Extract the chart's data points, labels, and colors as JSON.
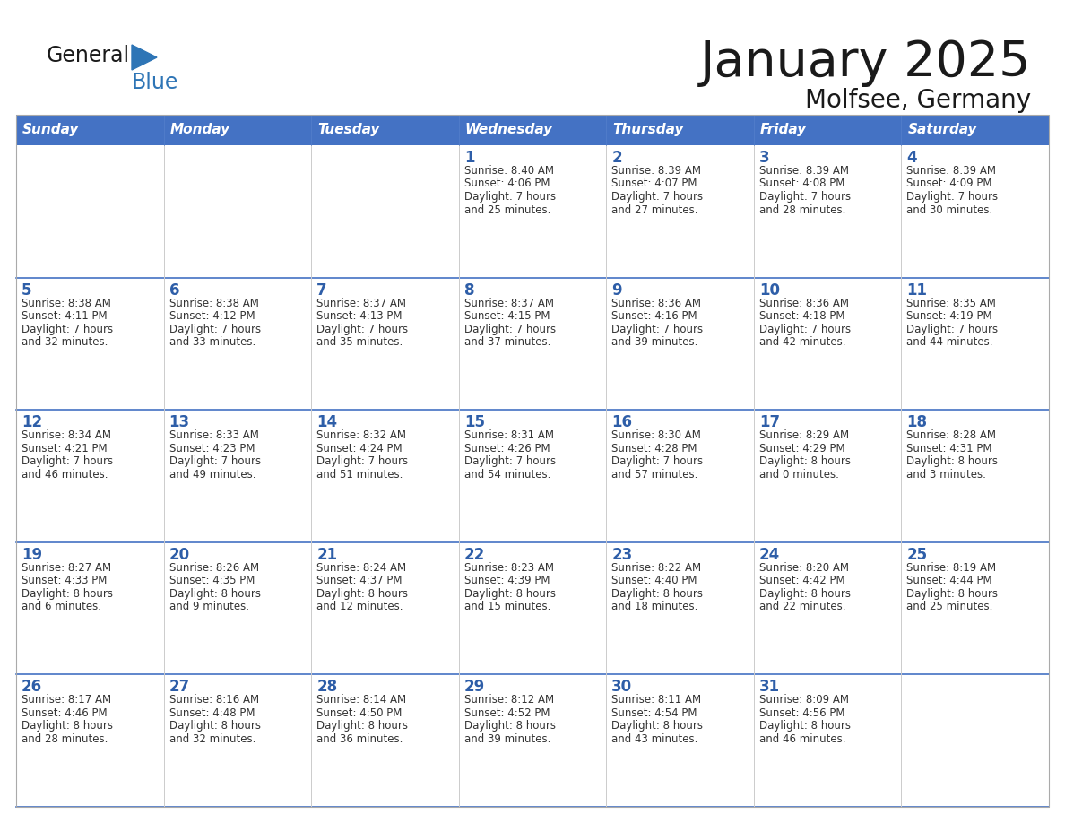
{
  "title": "January 2025",
  "subtitle": "Molfsee, Germany",
  "days_of_week": [
    "Sunday",
    "Monday",
    "Tuesday",
    "Wednesday",
    "Thursday",
    "Friday",
    "Saturday"
  ],
  "header_bg": "#4472C4",
  "header_text": "#FFFFFF",
  "cell_bg_white": "#FFFFFF",
  "cell_bg_gray": "#F0F0F0",
  "day_number_color": "#2E5EA8",
  "cell_text_color": "#333333",
  "border_color": "#4472C4",
  "logo_text_color": "#1a1a1a",
  "logo_blue_color": "#2E75B6",
  "title_color": "#1a1a1a",
  "weeks": [
    [
      {
        "day": null,
        "sunrise": null,
        "sunset": null,
        "daylight": null
      },
      {
        "day": null,
        "sunrise": null,
        "sunset": null,
        "daylight": null
      },
      {
        "day": null,
        "sunrise": null,
        "sunset": null,
        "daylight": null
      },
      {
        "day": 1,
        "sunrise": "8:40 AM",
        "sunset": "4:06 PM",
        "daylight": "7 hours and 25 minutes."
      },
      {
        "day": 2,
        "sunrise": "8:39 AM",
        "sunset": "4:07 PM",
        "daylight": "7 hours and 27 minutes."
      },
      {
        "day": 3,
        "sunrise": "8:39 AM",
        "sunset": "4:08 PM",
        "daylight": "7 hours and 28 minutes."
      },
      {
        "day": 4,
        "sunrise": "8:39 AM",
        "sunset": "4:09 PM",
        "daylight": "7 hours and 30 minutes."
      }
    ],
    [
      {
        "day": 5,
        "sunrise": "8:38 AM",
        "sunset": "4:11 PM",
        "daylight": "7 hours and 32 minutes."
      },
      {
        "day": 6,
        "sunrise": "8:38 AM",
        "sunset": "4:12 PM",
        "daylight": "7 hours and 33 minutes."
      },
      {
        "day": 7,
        "sunrise": "8:37 AM",
        "sunset": "4:13 PM",
        "daylight": "7 hours and 35 minutes."
      },
      {
        "day": 8,
        "sunrise": "8:37 AM",
        "sunset": "4:15 PM",
        "daylight": "7 hours and 37 minutes."
      },
      {
        "day": 9,
        "sunrise": "8:36 AM",
        "sunset": "4:16 PM",
        "daylight": "7 hours and 39 minutes."
      },
      {
        "day": 10,
        "sunrise": "8:36 AM",
        "sunset": "4:18 PM",
        "daylight": "7 hours and 42 minutes."
      },
      {
        "day": 11,
        "sunrise": "8:35 AM",
        "sunset": "4:19 PM",
        "daylight": "7 hours and 44 minutes."
      }
    ],
    [
      {
        "day": 12,
        "sunrise": "8:34 AM",
        "sunset": "4:21 PM",
        "daylight": "7 hours and 46 minutes."
      },
      {
        "day": 13,
        "sunrise": "8:33 AM",
        "sunset": "4:23 PM",
        "daylight": "7 hours and 49 minutes."
      },
      {
        "day": 14,
        "sunrise": "8:32 AM",
        "sunset": "4:24 PM",
        "daylight": "7 hours and 51 minutes."
      },
      {
        "day": 15,
        "sunrise": "8:31 AM",
        "sunset": "4:26 PM",
        "daylight": "7 hours and 54 minutes."
      },
      {
        "day": 16,
        "sunrise": "8:30 AM",
        "sunset": "4:28 PM",
        "daylight": "7 hours and 57 minutes."
      },
      {
        "day": 17,
        "sunrise": "8:29 AM",
        "sunset": "4:29 PM",
        "daylight": "8 hours and 0 minutes."
      },
      {
        "day": 18,
        "sunrise": "8:28 AM",
        "sunset": "4:31 PM",
        "daylight": "8 hours and 3 minutes."
      }
    ],
    [
      {
        "day": 19,
        "sunrise": "8:27 AM",
        "sunset": "4:33 PM",
        "daylight": "8 hours and 6 minutes."
      },
      {
        "day": 20,
        "sunrise": "8:26 AM",
        "sunset": "4:35 PM",
        "daylight": "8 hours and 9 minutes."
      },
      {
        "day": 21,
        "sunrise": "8:24 AM",
        "sunset": "4:37 PM",
        "daylight": "8 hours and 12 minutes."
      },
      {
        "day": 22,
        "sunrise": "8:23 AM",
        "sunset": "4:39 PM",
        "daylight": "8 hours and 15 minutes."
      },
      {
        "day": 23,
        "sunrise": "8:22 AM",
        "sunset": "4:40 PM",
        "daylight": "8 hours and 18 minutes."
      },
      {
        "day": 24,
        "sunrise": "8:20 AM",
        "sunset": "4:42 PM",
        "daylight": "8 hours and 22 minutes."
      },
      {
        "day": 25,
        "sunrise": "8:19 AM",
        "sunset": "4:44 PM",
        "daylight": "8 hours and 25 minutes."
      }
    ],
    [
      {
        "day": 26,
        "sunrise": "8:17 AM",
        "sunset": "4:46 PM",
        "daylight": "8 hours and 28 minutes."
      },
      {
        "day": 27,
        "sunrise": "8:16 AM",
        "sunset": "4:48 PM",
        "daylight": "8 hours and 32 minutes."
      },
      {
        "day": 28,
        "sunrise": "8:14 AM",
        "sunset": "4:50 PM",
        "daylight": "8 hours and 36 minutes."
      },
      {
        "day": 29,
        "sunrise": "8:12 AM",
        "sunset": "4:52 PM",
        "daylight": "8 hours and 39 minutes."
      },
      {
        "day": 30,
        "sunrise": "8:11 AM",
        "sunset": "4:54 PM",
        "daylight": "8 hours and 43 minutes."
      },
      {
        "day": 31,
        "sunrise": "8:09 AM",
        "sunset": "4:56 PM",
        "daylight": "8 hours and 46 minutes."
      },
      {
        "day": null,
        "sunrise": null,
        "sunset": null,
        "daylight": null
      }
    ]
  ]
}
